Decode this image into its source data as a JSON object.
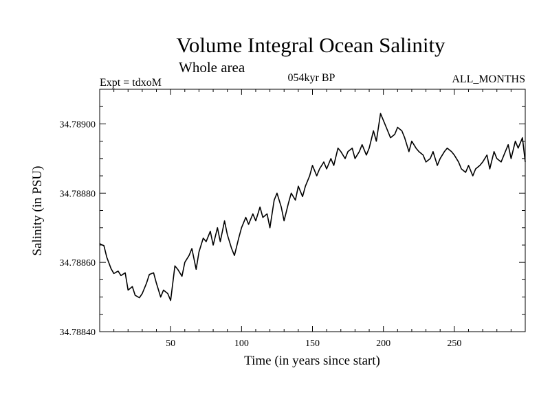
{
  "chart_data": {
    "type": "line",
    "title": "Volume Integral Ocean Salinity",
    "subtitle": "Whole area",
    "annotations": {
      "left": "Expt = tdxoM",
      "center": "054kyr BP",
      "right": "ALL_MONTHS"
    },
    "xlabel": "Time (in years since start)",
    "ylabel": "Salinity (in PSU)",
    "xlim": [
      0,
      300
    ],
    "ylim": [
      34.7884,
      34.7891
    ],
    "x_ticks": [
      50,
      100,
      150,
      200,
      250
    ],
    "y_ticks": [
      34.7884,
      34.7886,
      34.7888,
      34.789
    ],
    "y_tick_labels": [
      "34.78840",
      "34.78860",
      "34.78880",
      "34.78900"
    ],
    "grid": false,
    "series": [
      {
        "name": "",
        "x": [
          0,
          3,
          5,
          8,
          10,
          13,
          15,
          18,
          20,
          23,
          25,
          28,
          30,
          33,
          35,
          38,
          40,
          43,
          45,
          48,
          50,
          53,
          55,
          58,
          60,
          63,
          65,
          68,
          70,
          73,
          75,
          78,
          80,
          83,
          85,
          88,
          90,
          93,
          95,
          98,
          100,
          103,
          105,
          108,
          110,
          113,
          115,
          118,
          120,
          123,
          125,
          128,
          130,
          133,
          135,
          138,
          140,
          143,
          145,
          148,
          150,
          153,
          155,
          158,
          160,
          163,
          165,
          168,
          170,
          173,
          175,
          178,
          180,
          183,
          185,
          188,
          190,
          193,
          195,
          198,
          200,
          203,
          205,
          208,
          210,
          213,
          215,
          218,
          220,
          223,
          225,
          228,
          230,
          233,
          235,
          238,
          240,
          243,
          245,
          248,
          250,
          253,
          255,
          258,
          260,
          263,
          265,
          268,
          270,
          273,
          275,
          278,
          280,
          283,
          285,
          288,
          290,
          293,
          295,
          298,
          300
        ],
        "y": [
          34.788654,
          34.788648,
          34.788615,
          34.788582,
          34.788568,
          34.788575,
          34.788562,
          34.78857,
          34.78852,
          34.78853,
          34.788505,
          34.788498,
          34.78851,
          34.78854,
          34.788565,
          34.78857,
          34.78854,
          34.7885,
          34.78852,
          34.78851,
          34.78849,
          34.78859,
          34.78858,
          34.78856,
          34.7886,
          34.78862,
          34.78864,
          34.78858,
          34.78863,
          34.78867,
          34.78866,
          34.78869,
          34.78865,
          34.7887,
          34.78866,
          34.78872,
          34.78868,
          34.78864,
          34.78862,
          34.78867,
          34.7887,
          34.78873,
          34.78871,
          34.78874,
          34.78872,
          34.78876,
          34.78873,
          34.78874,
          34.7887,
          34.78878,
          34.7888,
          34.78876,
          34.78872,
          34.78877,
          34.7888,
          34.78878,
          34.78882,
          34.78879,
          34.78882,
          34.78885,
          34.78888,
          34.78885,
          34.78887,
          34.78889,
          34.78887,
          34.7889,
          34.78888,
          34.78893,
          34.78892,
          34.7889,
          34.78892,
          34.78893,
          34.7889,
          34.78892,
          34.78894,
          34.78891,
          34.78893,
          34.78898,
          34.78895,
          34.78903,
          34.78901,
          34.78898,
          34.78896,
          34.78897,
          34.78899,
          34.78898,
          34.78896,
          34.78892,
          34.78895,
          34.78893,
          34.78892,
          34.78891,
          34.78889,
          34.7889,
          34.78892,
          34.78888,
          34.7889,
          34.78892,
          34.78893,
          34.78892,
          34.78891,
          34.78889,
          34.78887,
          34.78886,
          34.78888,
          34.78885,
          34.78887,
          34.78888,
          34.78889,
          34.78891,
          34.78887,
          34.78892,
          34.7889,
          34.78889,
          34.78891,
          34.78894,
          34.7889,
          34.78895,
          34.78893,
          34.78896,
          34.78889
        ]
      }
    ]
  }
}
